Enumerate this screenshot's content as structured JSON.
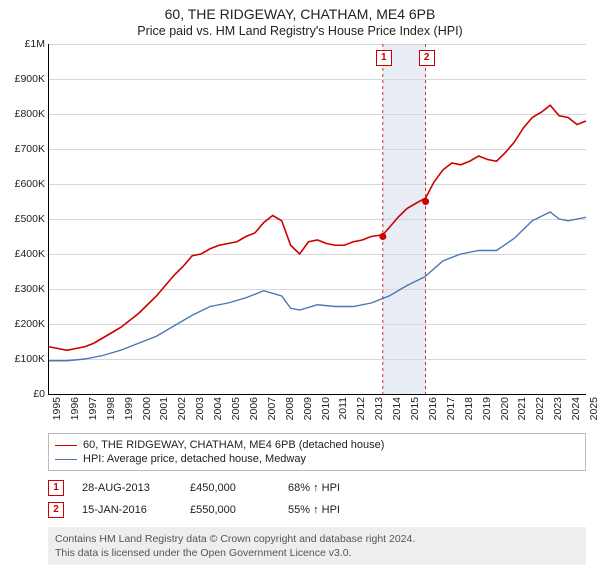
{
  "title": "60, THE RIDGEWAY, CHATHAM, ME4 6PB",
  "subtitle": "Price paid vs. HM Land Registry's House Price Index (HPI)",
  "chart": {
    "type": "line",
    "background_color": "#ffffff",
    "grid_color": "#d7d7d7",
    "ylim": [
      0,
      1000000
    ],
    "ytick_step": 100000,
    "yticks": [
      "£0",
      "£100K",
      "£200K",
      "£300K",
      "£400K",
      "£500K",
      "£600K",
      "£700K",
      "£800K",
      "£900K",
      "£1M"
    ],
    "xlim": [
      1995,
      2025
    ],
    "xticks": [
      "1995",
      "1996",
      "1997",
      "1998",
      "1999",
      "2000",
      "2001",
      "2002",
      "2003",
      "2004",
      "2005",
      "2006",
      "2007",
      "2008",
      "2009",
      "2010",
      "2011",
      "2012",
      "2013",
      "2014",
      "2015",
      "2016",
      "2017",
      "2018",
      "2019",
      "2020",
      "2021",
      "2022",
      "2023",
      "2024",
      "2025"
    ],
    "shade": {
      "from": 2013.65,
      "to": 2016.04,
      "color": "#e8edf5"
    },
    "series": [
      {
        "name": "property",
        "color": "#cc0000",
        "width": 1.6,
        "points": [
          [
            1995,
            135000
          ],
          [
            1995.5,
            130000
          ],
          [
            1996,
            125000
          ],
          [
            1996.5,
            130000
          ],
          [
            1997,
            135000
          ],
          [
            1997.5,
            145000
          ],
          [
            1998,
            160000
          ],
          [
            1998.5,
            175000
          ],
          [
            1999,
            190000
          ],
          [
            1999.5,
            210000
          ],
          [
            2000,
            230000
          ],
          [
            2000.5,
            255000
          ],
          [
            2001,
            280000
          ],
          [
            2001.5,
            310000
          ],
          [
            2002,
            340000
          ],
          [
            2002.5,
            365000
          ],
          [
            2003,
            395000
          ],
          [
            2003.5,
            400000
          ],
          [
            2004,
            415000
          ],
          [
            2004.5,
            425000
          ],
          [
            2005,
            430000
          ],
          [
            2005.5,
            435000
          ],
          [
            2006,
            450000
          ],
          [
            2006.5,
            460000
          ],
          [
            2007,
            490000
          ],
          [
            2007.5,
            510000
          ],
          [
            2008,
            495000
          ],
          [
            2008.5,
            425000
          ],
          [
            2009,
            400000
          ],
          [
            2009.5,
            435000
          ],
          [
            2010,
            440000
          ],
          [
            2010.5,
            430000
          ],
          [
            2011,
            425000
          ],
          [
            2011.5,
            425000
          ],
          [
            2012,
            435000
          ],
          [
            2012.5,
            440000
          ],
          [
            2013,
            450000
          ],
          [
            2013.65,
            455000
          ],
          [
            2014,
            475000
          ],
          [
            2014.5,
            505000
          ],
          [
            2015,
            530000
          ],
          [
            2015.5,
            545000
          ],
          [
            2016.04,
            560000
          ],
          [
            2016.5,
            605000
          ],
          [
            2017,
            640000
          ],
          [
            2017.5,
            660000
          ],
          [
            2018,
            655000
          ],
          [
            2018.5,
            665000
          ],
          [
            2019,
            680000
          ],
          [
            2019.5,
            670000
          ],
          [
            2020,
            665000
          ],
          [
            2020.5,
            690000
          ],
          [
            2021,
            720000
          ],
          [
            2021.5,
            760000
          ],
          [
            2022,
            790000
          ],
          [
            2022.5,
            805000
          ],
          [
            2023,
            825000
          ],
          [
            2023.5,
            795000
          ],
          [
            2024,
            790000
          ],
          [
            2024.5,
            770000
          ],
          [
            2025,
            780000
          ]
        ]
      },
      {
        "name": "hpi",
        "color": "#4a78b5",
        "width": 1.4,
        "points": [
          [
            1995,
            95000
          ],
          [
            1996,
            95000
          ],
          [
            1997,
            100000
          ],
          [
            1998,
            110000
          ],
          [
            1999,
            125000
          ],
          [
            2000,
            145000
          ],
          [
            2001,
            165000
          ],
          [
            2002,
            195000
          ],
          [
            2003,
            225000
          ],
          [
            2004,
            250000
          ],
          [
            2005,
            260000
          ],
          [
            2006,
            275000
          ],
          [
            2007,
            295000
          ],
          [
            2008,
            280000
          ],
          [
            2008.5,
            245000
          ],
          [
            2009,
            240000
          ],
          [
            2010,
            255000
          ],
          [
            2011,
            250000
          ],
          [
            2012,
            250000
          ],
          [
            2013,
            260000
          ],
          [
            2014,
            280000
          ],
          [
            2015,
            310000
          ],
          [
            2016,
            335000
          ],
          [
            2017,
            380000
          ],
          [
            2018,
            400000
          ],
          [
            2019,
            410000
          ],
          [
            2020,
            410000
          ],
          [
            2021,
            445000
          ],
          [
            2022,
            495000
          ],
          [
            2023,
            520000
          ],
          [
            2023.5,
            500000
          ],
          [
            2024,
            495000
          ],
          [
            2025,
            505000
          ]
        ]
      }
    ],
    "markers": [
      {
        "id": "1",
        "x": 2013.65,
        "y": 450000
      },
      {
        "id": "2",
        "x": 2016.04,
        "y": 550000
      }
    ]
  },
  "legend": {
    "items": [
      {
        "color": "#cc0000",
        "width": 1.6,
        "label": "60, THE RIDGEWAY, CHATHAM, ME4 6PB (detached house)"
      },
      {
        "color": "#4a78b5",
        "width": 1.4,
        "label": "HPI: Average price, detached house, Medway"
      }
    ]
  },
  "sales": [
    {
      "id": "1",
      "date": "28-AUG-2013",
      "price": "£450,000",
      "delta": "68% ↑ HPI"
    },
    {
      "id": "2",
      "date": "15-JAN-2016",
      "price": "£550,000",
      "delta": "55% ↑ HPI"
    }
  ],
  "footer": {
    "line1": "Contains HM Land Registry data © Crown copyright and database right 2024.",
    "line2": "This data is licensed under the Open Government Licence v3.0."
  }
}
